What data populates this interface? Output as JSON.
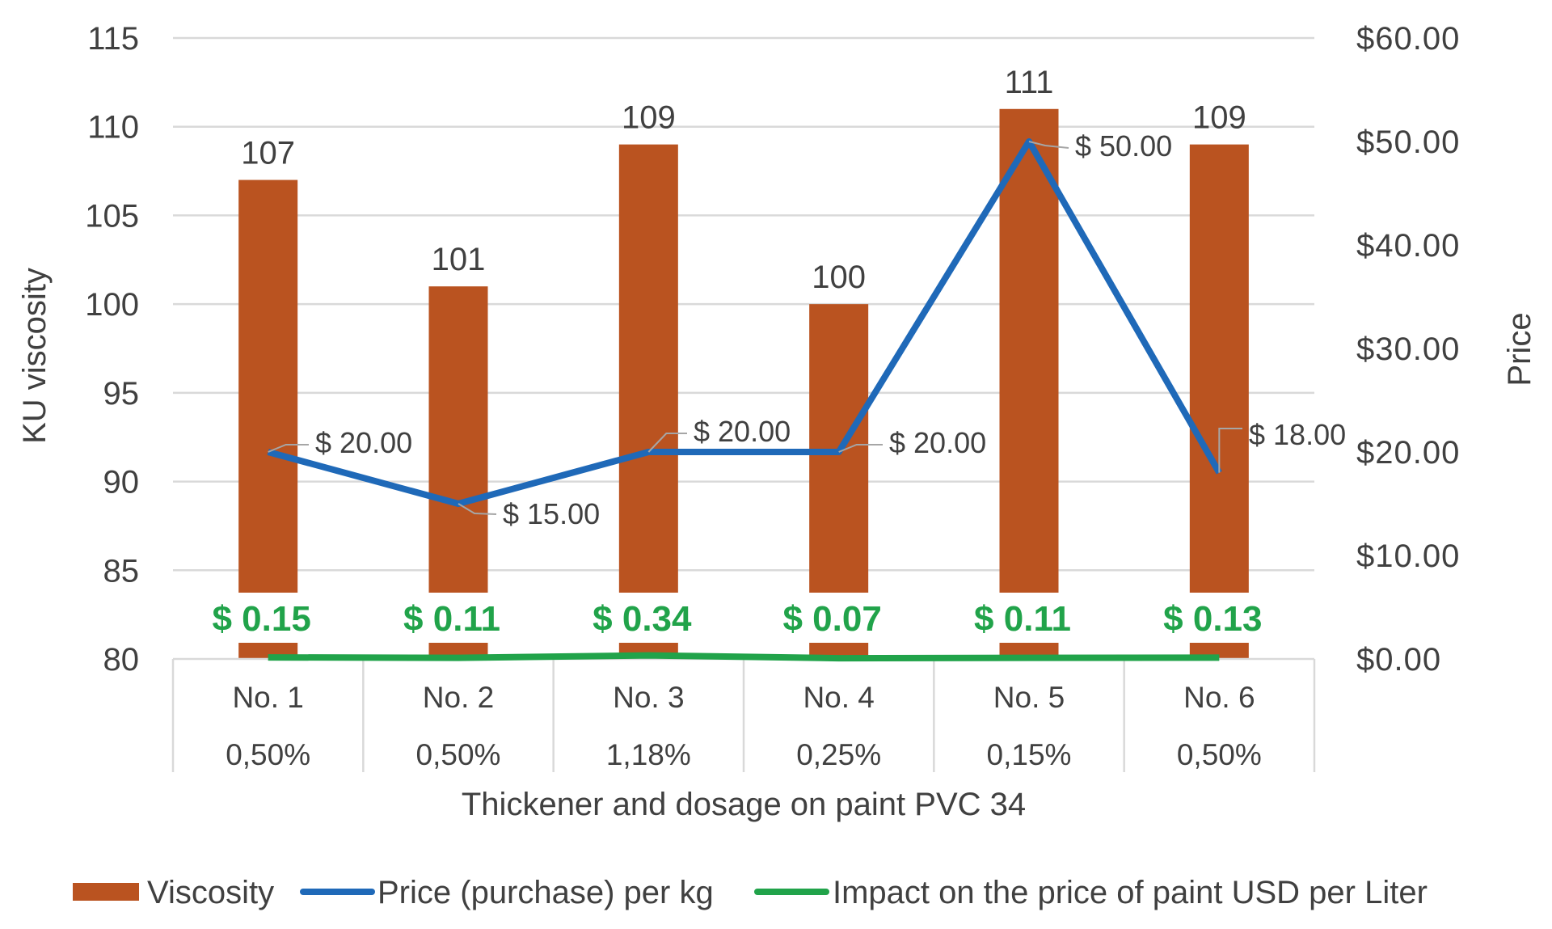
{
  "chart_data": {
    "type": "bar+line",
    "title": "",
    "xlabel": "Thickener and dosage on paint PVC 34",
    "ylabel": "KU viscosity",
    "y2label": "Price",
    "ylim": [
      80,
      115
    ],
    "y2lim": [
      0,
      60
    ],
    "yticks": [
      "115",
      "110",
      "105",
      "100",
      "95",
      "90",
      "85",
      "80"
    ],
    "y2ticks": [
      "$60.00",
      "$50.00",
      "$40.00",
      "$30.00",
      "$20.00",
      "$10.00",
      "$0.00"
    ],
    "categories": [
      "No. 1",
      "No. 2",
      "No. 3",
      "No. 4",
      "No. 5",
      "No. 6"
    ],
    "dosages": [
      "0,50%",
      "0,50%",
      "1,18%",
      "0,25%",
      "0,15%",
      "0,50%"
    ],
    "series": [
      {
        "name": "Viscosity",
        "type": "bar",
        "axis": "left",
        "color": "#BA5320",
        "values": [
          107,
          101,
          109,
          100,
          111,
          109
        ],
        "labels": [
          "107",
          "101",
          "109",
          "100",
          "111",
          "109"
        ]
      },
      {
        "name": "Price (purchase) per kg",
        "type": "line",
        "axis": "right",
        "color": "#1F69B8",
        "values": [
          20,
          15,
          20,
          20,
          50,
          18
        ],
        "labels": [
          "$ 20.00",
          "$ 15.00",
          "$ 20.00",
          "$ 20.00",
          "$ 50.00",
          "$ 18.00"
        ]
      },
      {
        "name": "Impact on the price of paint USD per Liter",
        "type": "line",
        "axis": "right",
        "color": "#21A34A",
        "values": [
          0.15,
          0.11,
          0.34,
          0.07,
          0.11,
          0.13
        ],
        "labels": [
          "$ 0.15",
          "$ 0.11",
          "$ 0.34",
          "$ 0.07",
          "$ 0.11",
          "$ 0.13"
        ]
      }
    ],
    "grid": true,
    "legend_position": "bottom"
  },
  "colors": {
    "bar": "#BA5320",
    "price_line": "#1F69B8",
    "impact_line": "#21A34A",
    "grid": "#D9D9D9",
    "text": "#404040"
  }
}
